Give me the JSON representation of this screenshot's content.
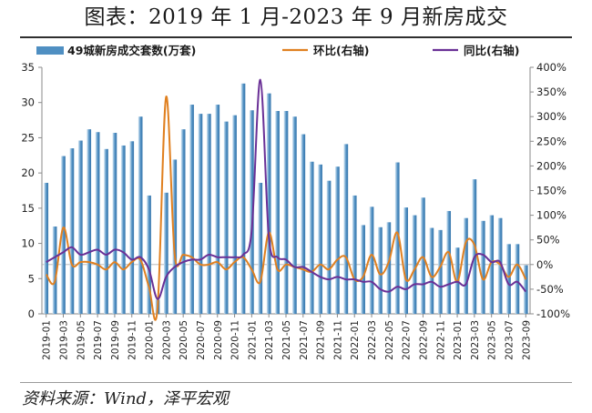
{
  "title": "图表：2019 年 1 月-2023 年 9 月新房成交",
  "source": "资料来源：Wind，泽平宏观",
  "colors": {
    "bar": "#4f8fc2",
    "bar_light": "#d3e6f4",
    "mom_line": "#e08020",
    "yoy_line": "#6a3096",
    "axis": "#8a8a8a",
    "baseline": "#b0b0b0"
  },
  "chart_data": {
    "type": "bar",
    "title": "",
    "x": [
      "2019-01",
      "2019-02",
      "2019-03",
      "2019-04",
      "2019-05",
      "2019-06",
      "2019-07",
      "2019-08",
      "2019-09",
      "2019-10",
      "2019-11",
      "2019-12",
      "2020-01",
      "2020-02",
      "2020-03",
      "2020-04",
      "2020-05",
      "2020-06",
      "2020-07",
      "2020-08",
      "2020-09",
      "2020-10",
      "2020-11",
      "2020-12",
      "2021-01",
      "2021-02",
      "2021-03",
      "2021-04",
      "2021-05",
      "2021-06",
      "2021-07",
      "2021-08",
      "2021-09",
      "2021-10",
      "2021-11",
      "2021-12",
      "2022-01",
      "2022-02",
      "2022-03",
      "2022-04",
      "2022-05",
      "2022-06",
      "2022-07",
      "2022-08",
      "2022-09",
      "2022-10",
      "2022-11",
      "2022-12",
      "2023-01",
      "2023-02",
      "2023-03",
      "2023-04",
      "2023-05",
      "2023-06",
      "2023-07",
      "2023-08",
      "2023-09"
    ],
    "x_tick_labels": [
      "2019-01",
      "2019-03",
      "2019-05",
      "2019-07",
      "2019-09",
      "2019-11",
      "2020-01",
      "2020-03",
      "2020-05",
      "2020-07",
      "2020-09",
      "2020-11",
      "2021-01",
      "2021-03",
      "2021-05",
      "2021-07",
      "2021-09",
      "2021-11",
      "2022-01",
      "2022-03",
      "2022-05",
      "2022-07",
      "2022-09",
      "2022-11",
      "2023-01",
      "2023-03",
      "2023-05",
      "2023-07",
      "2023-09"
    ],
    "left_axis": {
      "ylim": [
        0,
        35
      ],
      "ticks": [
        "0",
        "5",
        "10",
        "15",
        "20",
        "25",
        "30",
        "35"
      ]
    },
    "right_axis": {
      "ylim": [
        -100,
        400
      ],
      "ticks": [
        "-100%",
        "-50%",
        "0%",
        "50%",
        "100%",
        "150%",
        "200%",
        "250%",
        "300%",
        "350%",
        "400%"
      ]
    },
    "grid": false,
    "legend_position": "top",
    "series": [
      {
        "name": "49城新房成交套数(万套)",
        "type": "bar",
        "axis": "left",
        "values": [
          18.6,
          12.4,
          22.4,
          23.5,
          24.6,
          26.2,
          25.8,
          23.4,
          25.7,
          23.9,
          24.5,
          28.0,
          16.8,
          2.0,
          17.2,
          21.9,
          26.2,
          29.7,
          28.4,
          28.4,
          29.7,
          27.3,
          28.2,
          32.7,
          28.9,
          18.6,
          31.3,
          28.8,
          28.8,
          28.0,
          25.5,
          21.6,
          21.2,
          18.9,
          20.9,
          24.1,
          16.8,
          12.6,
          15.2,
          12.3,
          13.0,
          21.5,
          15.1,
          14.0,
          16.5,
          12.2,
          11.9,
          14.6,
          9.4,
          13.6,
          19.1,
          13.2,
          14.0,
          13.6,
          9.9,
          9.9,
          6.9
        ]
      },
      {
        "name": "环比(右轴)",
        "type": "line",
        "axis": "right",
        "values": [
          -20,
          -35,
          75,
          0,
          5,
          5,
          0,
          -10,
          5,
          -10,
          5,
          10,
          -45,
          -90,
          340,
          20,
          20,
          15,
          0,
          0,
          5,
          -10,
          5,
          15,
          -10,
          -35,
          65,
          -10,
          0,
          -5,
          -10,
          -15,
          0,
          -10,
          10,
          15,
          -30,
          -25,
          20,
          -20,
          5,
          65,
          -30,
          -10,
          15,
          -25,
          -5,
          25,
          -35,
          45,
          40,
          -30,
          5,
          0,
          -25,
          0,
          -30
        ]
      },
      {
        "name": "同比(右轴)",
        "type": "line",
        "axis": "right",
        "values": [
          5,
          15,
          25,
          35,
          20,
          25,
          30,
          20,
          30,
          25,
          10,
          15,
          -10,
          -70,
          -25,
          -5,
          5,
          10,
          10,
          20,
          15,
          15,
          15,
          20,
          70,
          375,
          55,
          15,
          10,
          -5,
          -5,
          -15,
          -25,
          -30,
          -25,
          -30,
          -30,
          -35,
          -35,
          -50,
          -55,
          -45,
          -50,
          -40,
          -40,
          -35,
          -45,
          -40,
          -35,
          -40,
          15,
          20,
          5,
          5,
          -40,
          -35,
          -55
        ]
      }
    ]
  }
}
